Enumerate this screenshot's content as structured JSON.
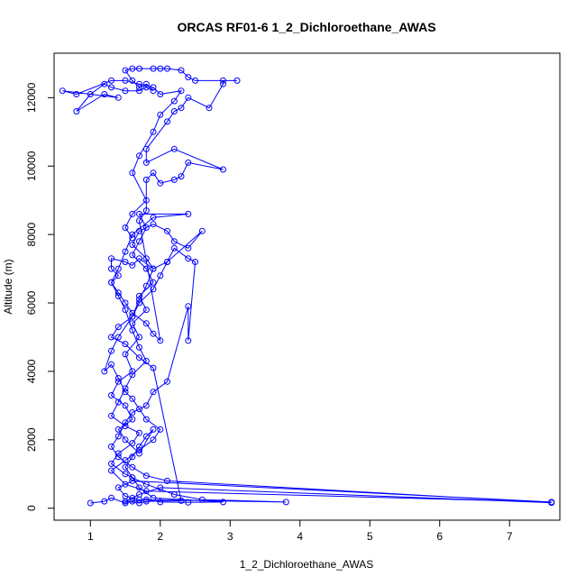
{
  "chart_data": {
    "type": "scatter",
    "title": "ORCAS RF01-6 1_2_Dichloroethane_AWAS",
    "xlabel": "1_2_Dichloroethane_AWAS",
    "ylabel": "Altitude (m)",
    "xlim": [
      0.48,
      7.72
    ],
    "ylim": [
      -350,
      13300
    ],
    "xticks": [
      1,
      2,
      3,
      4,
      5,
      6,
      7
    ],
    "yticks": [
      0,
      2000,
      4000,
      6000,
      8000,
      10000,
      12000
    ],
    "grid": false,
    "legend": "none",
    "color": "#0000ff",
    "series": [
      {
        "points": [
          [
            1.0,
            150
          ],
          [
            1.2,
            200
          ],
          [
            1.3,
            300
          ],
          [
            1.5,
            150
          ],
          [
            1.6,
            200
          ],
          [
            1.8,
            250
          ],
          [
            2.0,
            180
          ],
          [
            2.4,
            170
          ],
          [
            2.9,
            180
          ],
          [
            1.9,
            300
          ],
          [
            1.7,
            600
          ],
          [
            1.6,
            900
          ],
          [
            1.5,
            1200
          ],
          [
            1.6,
            1500
          ],
          [
            1.7,
            1800
          ],
          [
            1.8,
            2100
          ],
          [
            1.9,
            2300
          ],
          [
            1.7,
            1600
          ],
          [
            1.5,
            2000
          ],
          [
            1.4,
            2300
          ],
          [
            1.6,
            2600
          ],
          [
            1.5,
            3000
          ],
          [
            1.3,
            3300
          ],
          [
            1.4,
            3700
          ],
          [
            1.6,
            4000
          ],
          [
            1.5,
            4500
          ],
          [
            1.7,
            5000
          ],
          [
            1.6,
            5400
          ],
          [
            1.8,
            5800
          ],
          [
            1.7,
            6200
          ],
          [
            1.9,
            6600
          ],
          [
            1.8,
            7000
          ],
          [
            1.6,
            7400
          ],
          [
            1.7,
            7800
          ],
          [
            1.8,
            8200
          ],
          [
            1.7,
            8600
          ],
          [
            2.4,
            8600
          ],
          [
            1.9,
            8500
          ],
          [
            1.6,
            8000
          ],
          [
            1.5,
            7500
          ],
          [
            1.4,
            7000
          ],
          [
            1.3,
            6600
          ],
          [
            1.4,
            6200
          ],
          [
            1.5,
            5800
          ],
          [
            1.6,
            5200
          ],
          [
            1.7,
            4700
          ],
          [
            1.8,
            4300
          ],
          [
            1.6,
            3900
          ],
          [
            1.5,
            3500
          ],
          [
            1.4,
            3100
          ],
          [
            1.3,
            2700
          ],
          [
            1.5,
            2400
          ],
          [
            1.7,
            2200
          ],
          [
            1.6,
            1900
          ],
          [
            1.4,
            1600
          ],
          [
            1.3,
            1300
          ],
          [
            1.5,
            1000
          ],
          [
            1.8,
            700
          ],
          [
            2.2,
            400
          ],
          [
            2.6,
            250
          ],
          [
            3.8,
            180
          ],
          [
            1.7,
            250
          ],
          [
            1.5,
            350
          ],
          [
            1.4,
            600
          ],
          [
            1.6,
            800
          ],
          [
            7.6,
            180
          ],
          [
            1.8,
            500
          ],
          [
            1.5,
            700
          ],
          [
            1.3,
            1100
          ],
          [
            1.5,
            1400
          ],
          [
            1.7,
            1700
          ],
          [
            1.9,
            2000
          ],
          [
            2.0,
            2300
          ],
          [
            1.8,
            2600
          ],
          [
            1.7,
            2900
          ],
          [
            1.6,
            3200
          ],
          [
            1.5,
            3400
          ],
          [
            1.4,
            3800
          ],
          [
            1.3,
            4200
          ],
          [
            1.2,
            4000
          ],
          [
            1.3,
            4600
          ],
          [
            1.4,
            5000
          ],
          [
            1.6,
            5600
          ],
          [
            1.7,
            6000
          ],
          [
            1.9,
            6400
          ],
          [
            2.0,
            6800
          ],
          [
            2.1,
            7200
          ],
          [
            2.2,
            7600
          ],
          [
            2.4,
            7300
          ],
          [
            2.5,
            7200
          ],
          [
            2.4,
            4900
          ],
          [
            2.4,
            5900
          ],
          [
            2.1,
            3700
          ],
          [
            1.9,
            3400
          ],
          [
            1.8,
            3000
          ],
          [
            1.6,
            2800
          ],
          [
            1.5,
            2500
          ],
          [
            1.4,
            2100
          ],
          [
            1.3,
            1800
          ],
          [
            1.4,
            1500
          ],
          [
            1.6,
            1200
          ],
          [
            1.8,
            950
          ],
          [
            2.1,
            800
          ],
          [
            7.6,
            160
          ],
          [
            2.0,
            600
          ],
          [
            1.7,
            400
          ],
          [
            1.6,
            300
          ],
          [
            1.5,
            200
          ],
          [
            1.7,
            150
          ],
          [
            1.8,
            200
          ],
          [
            2.3,
            220
          ],
          [
            1.9,
            4100
          ],
          [
            1.7,
            4400
          ],
          [
            1.5,
            4800
          ],
          [
            1.3,
            5000
          ],
          [
            1.4,
            5300
          ],
          [
            1.6,
            5600
          ],
          [
            1.7,
            6100
          ],
          [
            1.8,
            6500
          ],
          [
            1.9,
            7000
          ],
          [
            1.8,
            7300
          ],
          [
            1.6,
            7700
          ],
          [
            1.7,
            8100
          ],
          [
            1.9,
            8300
          ],
          [
            2.1,
            8100
          ],
          [
            2.2,
            7800
          ],
          [
            2.4,
            7600
          ],
          [
            2.6,
            8100
          ],
          [
            2.1,
            7200
          ],
          [
            1.9,
            7000
          ],
          [
            1.7,
            7300
          ],
          [
            1.6,
            7100
          ],
          [
            1.5,
            7200
          ],
          [
            1.3,
            7300
          ],
          [
            1.3,
            7000
          ],
          [
            1.4,
            6800
          ],
          [
            1.3,
            6600
          ],
          [
            1.4,
            6300
          ],
          [
            1.5,
            6000
          ],
          [
            1.6,
            5700
          ],
          [
            1.8,
            5400
          ],
          [
            1.9,
            5100
          ],
          [
            2.0,
            4900
          ],
          [
            1.7,
            8400
          ],
          [
            1.8,
            8700
          ],
          [
            1.8,
            9600
          ],
          [
            1.9,
            9800
          ],
          [
            2.0,
            9500
          ],
          [
            2.2,
            9600
          ],
          [
            2.3,
            9700
          ],
          [
            2.4,
            10100
          ],
          [
            2.9,
            9900
          ],
          [
            2.2,
            10500
          ],
          [
            1.8,
            10100
          ],
          [
            1.8,
            10500
          ],
          [
            2.1,
            11300
          ],
          [
            2.2,
            11600
          ],
          [
            2.3,
            11700
          ],
          [
            2.4,
            12000
          ],
          [
            2.7,
            11700
          ],
          [
            2.9,
            12400
          ],
          [
            2.9,
            12500
          ],
          [
            3.1,
            12500
          ],
          [
            2.5,
            12500
          ],
          [
            2.4,
            12600
          ],
          [
            2.3,
            12800
          ],
          [
            2.1,
            12850
          ],
          [
            2.0,
            12850
          ],
          [
            1.9,
            12850
          ],
          [
            1.7,
            12850
          ],
          [
            1.6,
            12850
          ],
          [
            1.5,
            12800
          ],
          [
            1.6,
            12500
          ],
          [
            1.7,
            12300
          ],
          [
            1.8,
            12400
          ],
          [
            1.9,
            12200
          ],
          [
            1.8,
            12300
          ],
          [
            1.7,
            12200
          ],
          [
            1.5,
            12200
          ],
          [
            1.3,
            12300
          ],
          [
            1.2,
            12400
          ],
          [
            1.0,
            12100
          ],
          [
            0.8,
            11600
          ],
          [
            1.2,
            12100
          ],
          [
            1.4,
            12000
          ],
          [
            0.6,
            12200
          ],
          [
            0.8,
            12100
          ],
          [
            1.3,
            12500
          ],
          [
            1.5,
            12500
          ],
          [
            1.7,
            12400
          ],
          [
            1.9,
            12300
          ],
          [
            2.0,
            12100
          ],
          [
            2.3,
            12200
          ],
          [
            2.2,
            11900
          ],
          [
            2.0,
            11500
          ],
          [
            1.9,
            11000
          ],
          [
            1.7,
            10300
          ],
          [
            1.6,
            9800
          ],
          [
            1.8,
            9000
          ],
          [
            1.6,
            8600
          ],
          [
            1.5,
            8200
          ],
          [
            1.6,
            7900
          ]
        ]
      }
    ]
  }
}
